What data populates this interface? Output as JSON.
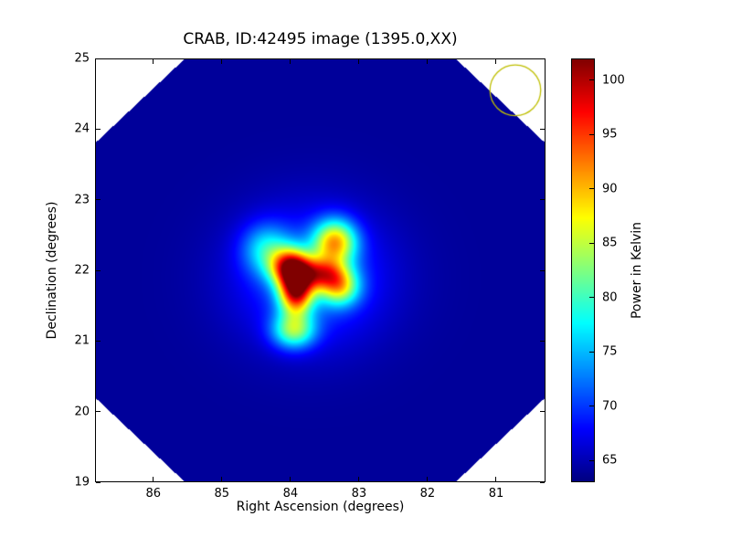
{
  "chart_data": {
    "type": "heatmap",
    "title": "CRAB, ID:42495 image (1395.0,XX)",
    "xlabel": "Right Ascension (degrees)",
    "ylabel": "Declination (degrees)",
    "colorbar_label": "Power in Kelvin",
    "x_axis": {
      "left_value": 86.85,
      "right_value": 80.28,
      "inverted": true,
      "ticks": [
        86,
        85,
        84,
        83,
        82,
        81
      ]
    },
    "y_axis": {
      "top_value": 25,
      "bottom_value": 19,
      "ticks": [
        19,
        20,
        21,
        22,
        23,
        24,
        25
      ]
    },
    "colorbar": {
      "min": 63,
      "max": 102,
      "ticks": [
        65,
        70,
        75,
        80,
        85,
        90,
        95,
        100
      ],
      "colormap": "jet"
    },
    "background_value_kelvin": 64,
    "mask": {
      "shape": "octagon",
      "corner_cut_fraction": 0.4,
      "outside_color": "#ffffff"
    },
    "source": {
      "name": "CRAB",
      "peak_value_kelvin": 101,
      "components": [
        {
          "ra": 84.0,
          "dec": 22.05,
          "amp": 26,
          "sigma_ra": 0.2,
          "sigma_dec": 0.18
        },
        {
          "ra": 83.92,
          "dec": 21.7,
          "amp": 29,
          "sigma_ra": 0.17,
          "sigma_dec": 0.22
        },
        {
          "ra": 83.55,
          "dec": 21.95,
          "amp": 20,
          "sigma_ra": 0.25,
          "sigma_dec": 0.16
        },
        {
          "ra": 83.35,
          "dec": 22.4,
          "amp": 22,
          "sigma_ra": 0.22,
          "sigma_dec": 0.22
        },
        {
          "ra": 83.28,
          "dec": 21.75,
          "amp": 16,
          "sigma_ra": 0.2,
          "sigma_dec": 0.18
        },
        {
          "ra": 83.95,
          "dec": 21.15,
          "amp": 16,
          "sigma_ra": 0.22,
          "sigma_dec": 0.18
        },
        {
          "ra": 84.35,
          "dec": 22.3,
          "amp": 10,
          "sigma_ra": 0.25,
          "sigma_dec": 0.25
        },
        {
          "ra": 83.7,
          "dec": 21.9,
          "amp": 8,
          "sigma_ra": 0.75,
          "sigma_dec": 0.65
        }
      ]
    },
    "beam_circle": {
      "ra": 80.72,
      "dec": 24.55,
      "radius_deg": 0.37,
      "color": "#bfbf00"
    }
  }
}
